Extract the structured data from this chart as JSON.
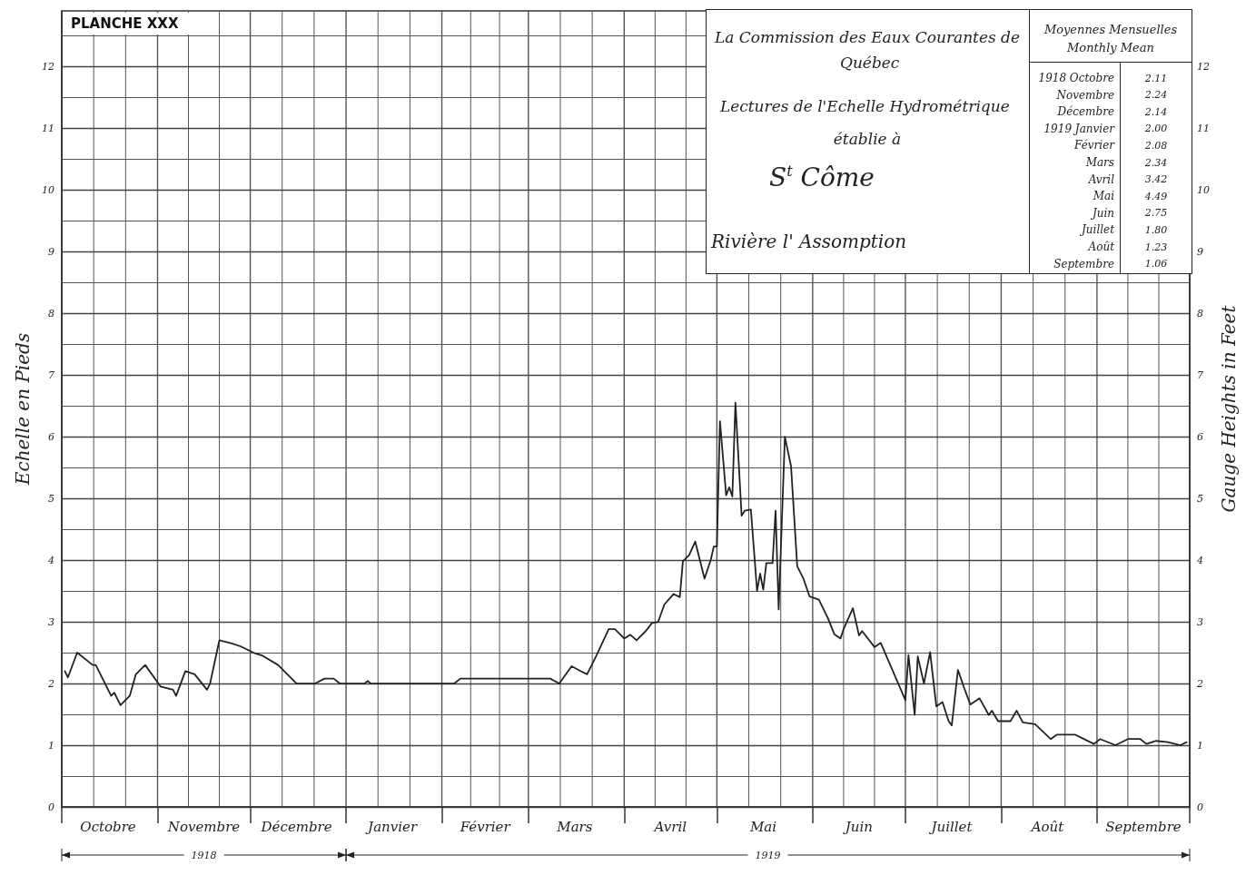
{
  "chart_data": {
    "type": "line",
    "title": "La Commission des Eaux Courantes de Québec",
    "subtitle": "Lectures de l'Echelle Hydrométrique établie à",
    "ylabel": "Echelle en Pieds",
    "y2label": "Gauge Heights in Feet",
    "annotations": [
      "S$^{t}$ Côme",
      "Rivière l' Assomption",
      "PLANCHE XXX",
      "Moyennes Mensuelles",
      "Monthly Mean",
      "1918 Octobre",
      "2.11",
      "Novembre",
      "2.24",
      "Décembre",
      "2.14",
      "1919 Janvier",
      "2.00",
      "Février",
      "2.08",
      "Mars",
      "2.34",
      "Avril",
      "3.42",
      "Mai",
      "4.49",
      "Juin",
      "2.75",
      "Juillet",
      "1.80",
      "Août",
      "1.23",
      "Septembre",
      "1.06",
      "1918",
      "1919"
    ],
    "x": [
      "1918-10-02",
      "1918-10-03",
      "1918-10-06",
      "1918-10-11",
      "1918-10-12",
      "1918-10-17",
      "1918-10-18",
      "1918-10-20",
      "1918-10-23",
      "1918-10-25",
      "1918-10-28",
      "1918-11-02",
      "1918-11-06",
      "1918-11-07",
      "1918-11-10",
      "1918-11-13",
      "1918-11-17",
      "1918-11-18",
      "1918-11-21",
      "1918-11-25",
      "1918-11-28",
      "1918-12-02",
      "1918-12-05",
      "1918-12-10",
      "1918-12-13",
      "1918-12-16",
      "1918-12-22",
      "1918-12-25",
      "1918-12-28",
      "1918-12-30",
      "1919-01-07",
      "1919-01-08",
      "1919-01-09",
      "1919-02-05",
      "1919-02-07",
      "1919-03-08",
      "1919-03-11",
      "1919-03-15",
      "1919-03-18",
      "1919-03-20",
      "1919-03-23",
      "1919-03-27",
      "1919-03-29",
      "1919-04-01",
      "1919-04-03",
      "1919-04-05",
      "1919-04-08",
      "1919-04-10",
      "1919-04-12",
      "1919-04-14",
      "1919-04-17",
      "1919-04-19",
      "1919-04-20",
      "1919-04-22",
      "1919-04-24",
      "1919-04-27",
      "1919-04-29",
      "1919-04-30",
      "1919-05-01",
      "1919-05-02",
      "1919-05-04",
      "1919-05-05",
      "1919-05-06",
      "1919-05-07",
      "1919-05-09",
      "1919-05-10",
      "1919-05-12",
      "1919-05-14",
      "1919-05-15",
      "1919-05-16",
      "1919-05-17",
      "1919-05-19",
      "1919-05-20",
      "1919-05-21",
      "1919-05-23",
      "1919-05-25",
      "1919-05-27",
      "1919-05-29",
      "1919-05-31",
      "1919-06-03",
      "1919-06-06",
      "1919-06-08",
      "1919-06-10",
      "1919-06-11",
      "1919-06-14",
      "1919-06-16",
      "1919-06-17",
      "1919-06-21",
      "1919-06-23",
      "1919-07-01",
      "1919-07-02",
      "1919-07-04",
      "1919-07-05",
      "1919-07-07",
      "1919-07-09",
      "1919-07-11",
      "1919-07-13",
      "1919-07-15",
      "1919-07-16",
      "1919-07-18",
      "1919-07-20",
      "1919-07-22",
      "1919-07-25",
      "1919-07-28",
      "1919-07-29",
      "1919-07-31",
      "1919-08-04",
      "1919-08-06",
      "1919-08-08",
      "1919-08-12",
      "1919-08-17",
      "1919-08-19",
      "1919-08-25",
      "1919-08-27",
      "1919-08-31",
      "1919-09-02",
      "1919-09-07",
      "1919-09-11",
      "1919-09-15",
      "1919-09-17",
      "1919-09-20",
      "1919-09-24",
      "1919-09-28",
      "1919-09-30"
    ],
    "series": [
      {
        "color": "#222222",
        "values": [
          2.2,
          2.1,
          2.5,
          2.3,
          2.3,
          1.8,
          1.85,
          1.65,
          1.8,
          2.15,
          2.3,
          1.95,
          1.9,
          1.8,
          2.2,
          2.15,
          1.9,
          2.0,
          2.7,
          2.65,
          2.6,
          2.5,
          2.45,
          2.3,
          2.15,
          2.0,
          2.0,
          2.08,
          2.08,
          2.0,
          2.0,
          2.04,
          2.0,
          2.0,
          2.08,
          2.08,
          2.0,
          2.28,
          2.2,
          2.15,
          2.45,
          2.88,
          2.88,
          2.73,
          2.79,
          2.7,
          2.85,
          2.98,
          3.0,
          3.28,
          3.45,
          3.4,
          3.98,
          4.08,
          4.3,
          3.7,
          4.0,
          4.22,
          4.22,
          6.25,
          5.05,
          5.18,
          5.03,
          6.55,
          4.72,
          4.8,
          4.82,
          3.5,
          3.78,
          3.52,
          3.95,
          3.95,
          4.8,
          3.2,
          6.0,
          5.52,
          3.9,
          3.7,
          3.41,
          3.36,
          3.05,
          2.8,
          2.73,
          2.88,
          3.22,
          2.78,
          2.85,
          2.59,
          2.66,
          1.73,
          2.46,
          1.49,
          2.44,
          2.0,
          2.51,
          1.63,
          1.7,
          1.39,
          1.32,
          2.22,
          1.93,
          1.66,
          1.76,
          1.49,
          1.56,
          1.39,
          1.39,
          1.56,
          1.37,
          1.34,
          1.1,
          1.17,
          1.17,
          1.12,
          1.02,
          1.1,
          1.0,
          1.1,
          1.1,
          1.02,
          1.07,
          1.05,
          1.0,
          1.05
        ]
      }
    ],
    "xlim": [
      "1918-10-01",
      "1919-10-01"
    ],
    "xticks": [
      {
        "value": "1918-10-01",
        "label": null
      },
      {
        "value": "1918-10-16",
        "label": "Octobre"
      },
      {
        "value": "1918-11-01",
        "label": null
      },
      {
        "value": "1918-11-16",
        "label": "Novembre"
      },
      {
        "value": "1918-12-01",
        "label": null
      },
      {
        "value": "1918-12-16",
        "label": "Décembre"
      },
      {
        "value": "1919-01-01",
        "label": null
      },
      {
        "value": "1919-01-16",
        "label": "Janvier"
      },
      {
        "value": "1919-02-01",
        "label": null
      },
      {
        "value": "1919-02-15",
        "label": "Février"
      },
      {
        "value": "1919-03-01",
        "label": null
      },
      {
        "value": "1919-03-16",
        "label": "Mars"
      },
      {
        "value": "1919-04-01",
        "label": null
      },
      {
        "value": "1919-04-16",
        "label": "Avril"
      },
      {
        "value": "1919-05-01",
        "label": null
      },
      {
        "value": "1919-05-16",
        "label": "Mai"
      },
      {
        "value": "1919-06-01",
        "label": null
      },
      {
        "value": "1919-06-16",
        "label": "Juin"
      },
      {
        "value": "1919-07-01",
        "label": null
      },
      {
        "value": "1919-07-16",
        "label": "Juillet"
      },
      {
        "value": "1919-08-01",
        "label": null
      },
      {
        "value": "1919-08-16",
        "label": "Août"
      },
      {
        "value": "1919-09-01",
        "label": null
      },
      {
        "value": "1919-09-16",
        "label": "Septembre"
      },
      {
        "value": "1919-10-01",
        "label": null
      }
    ],
    "ylim": [
      0,
      12.9
    ],
    "yticks": [
      0,
      1,
      2,
      3,
      4,
      5,
      6,
      7,
      8,
      9,
      10,
      11,
      12
    ],
    "y2lim": [
      0,
      12.9
    ],
    "y2ticks": [
      0,
      1,
      2,
      3,
      4,
      5,
      6,
      7,
      8,
      9,
      10,
      11,
      12
    ],
    "grid": true,
    "line_style": "solid"
  }
}
